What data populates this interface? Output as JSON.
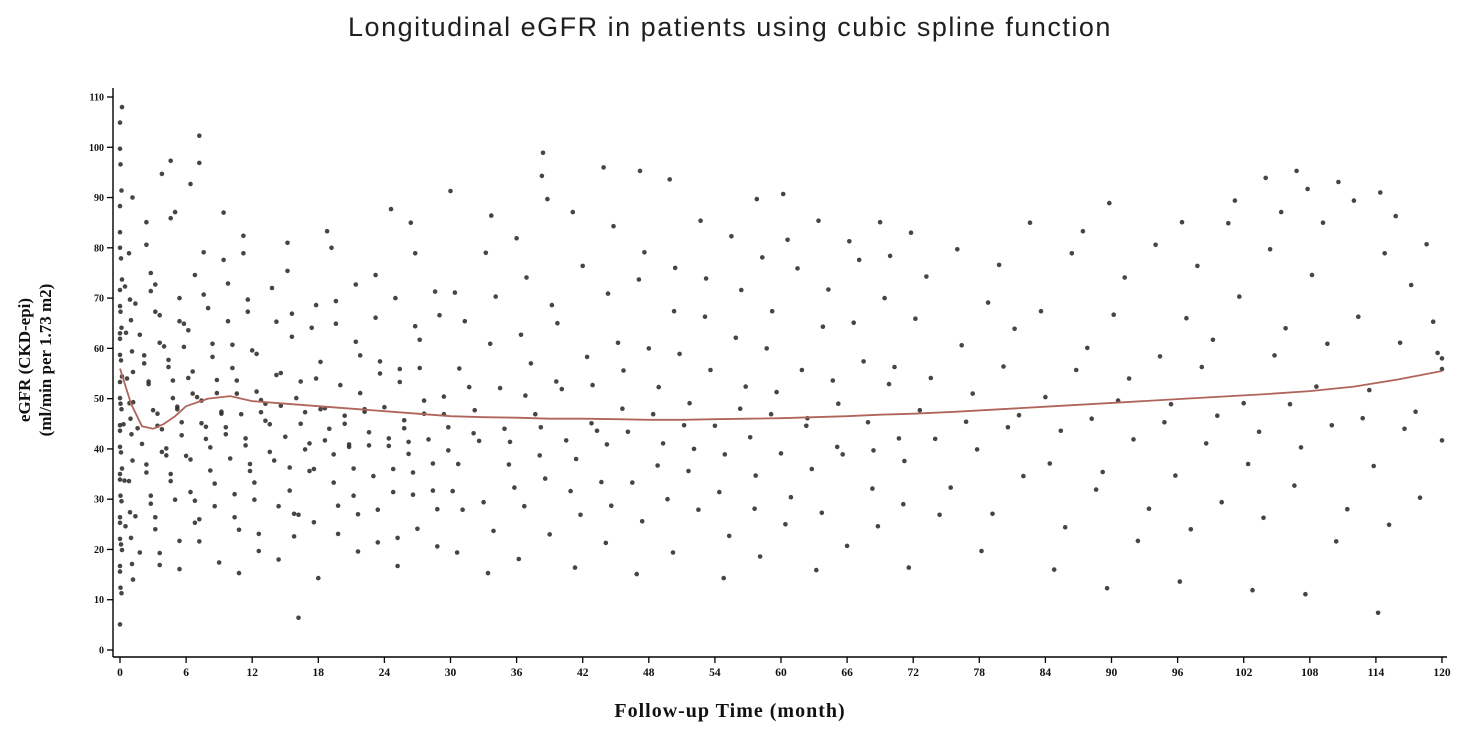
{
  "chart_data": {
    "type": "scatter",
    "title": "Longitudinal eGFR in patients using cubic spline function",
    "xlabel": "Follow-up  Time (month)",
    "ylabel": "eGFR (CKD-epi) (ml/min per 1.73 m2)",
    "ylabel_line1": "eGFR (CKD-epi)",
    "ylabel_line2": "(ml/min per 1.73 m2)",
    "xlim": [
      0,
      120
    ],
    "ylim": [
      0,
      110
    ],
    "xticks": [
      0,
      6,
      12,
      18,
      24,
      30,
      36,
      42,
      48,
      54,
      60,
      66,
      72,
      78,
      84,
      90,
      96,
      102,
      108,
      114,
      120
    ],
    "yticks": [
      0,
      10,
      20,
      30,
      40,
      50,
      60,
      70,
      80,
      90,
      100,
      110
    ],
    "grid": false,
    "legend": "none",
    "point_color": "#2e2a28",
    "line_color": "#b0655c",
    "axis_color": "#000000",
    "spline": [
      [
        0,
        56
      ],
      [
        1,
        49
      ],
      [
        2,
        44.5
      ],
      [
        3,
        44
      ],
      [
        4,
        45
      ],
      [
        5,
        46.5
      ],
      [
        6,
        48.5
      ],
      [
        8,
        50
      ],
      [
        10,
        50.5
      ],
      [
        12,
        49.5
      ],
      [
        15,
        49
      ],
      [
        18,
        48.5
      ],
      [
        21,
        48
      ],
      [
        24,
        47.5
      ],
      [
        27,
        47
      ],
      [
        30,
        46.5
      ],
      [
        33,
        46.3
      ],
      [
        36,
        46.2
      ],
      [
        39,
        46
      ],
      [
        42,
        46
      ],
      [
        45,
        45.9
      ],
      [
        48,
        45.8
      ],
      [
        51,
        45.8
      ],
      [
        54,
        45.9
      ],
      [
        57,
        46
      ],
      [
        60,
        46.1
      ],
      [
        63,
        46.3
      ],
      [
        66,
        46.5
      ],
      [
        69,
        46.8
      ],
      [
        72,
        47
      ],
      [
        76,
        47.4
      ],
      [
        80,
        47.9
      ],
      [
        84,
        48.4
      ],
      [
        88,
        48.9
      ],
      [
        92,
        49.4
      ],
      [
        96,
        49.9
      ],
      [
        100,
        50.4
      ],
      [
        104,
        50.9
      ],
      [
        108,
        51.5
      ],
      [
        112,
        52.4
      ],
      [
        116,
        53.8
      ],
      [
        120,
        55.5
      ]
    ],
    "points": [
      {
        "x": 0,
        "ys": [
          6,
          11,
          13,
          15,
          17,
          19,
          21,
          23,
          25,
          27,
          29,
          31,
          33,
          35,
          37,
          39,
          41,
          43,
          45,
          47,
          49,
          51,
          53,
          55,
          57,
          59,
          61,
          63,
          65,
          67,
          69,
          71,
          74,
          77,
          80,
          84,
          88,
          92,
          96,
          100,
          104,
          108
        ]
      },
      {
        "x": 0.5,
        "ys": [
          24,
          34,
          44,
          54,
          64,
          72
        ]
      },
      {
        "x": 1,
        "ys": [
          14,
          18,
          22,
          28,
          33,
          38,
          42,
          46,
          50,
          55,
          60,
          65,
          70,
          78,
          90
        ]
      },
      {
        "x": 2,
        "ys": [
          20,
          26,
          31,
          36,
          41,
          45,
          49,
          54,
          58,
          63,
          68,
          75,
          86
        ]
      },
      {
        "x": 3,
        "ys": [
          16,
          24,
          30,
          35,
          40,
          44,
          48,
          52,
          57,
          62,
          67,
          72,
          80,
          95
        ]
      },
      {
        "x": 4,
        "ys": [
          19,
          27,
          33,
          39,
          43,
          47,
          51,
          56,
          61,
          66,
          73,
          85
        ]
      },
      {
        "x": 5,
        "ys": [
          22,
          29,
          35,
          41,
          45,
          49,
          53,
          58,
          64,
          70,
          88,
          97
        ]
      },
      {
        "x": 6,
        "ys": [
          17,
          25,
          32,
          38,
          43,
          47,
          51,
          55,
          60,
          66,
          74,
          93
        ]
      },
      {
        "x": 7,
        "ys": [
          21,
          30,
          37,
          42,
          46,
          50,
          56,
          63,
          71,
          96
        ]
      },
      {
        "x": 8,
        "ys": [
          26,
          34,
          40,
          45,
          49,
          54,
          60,
          68,
          80,
          102
        ]
      },
      {
        "x": 9,
        "ys": [
          18,
          28,
          36,
          42,
          47,
          52,
          58,
          66,
          77
        ]
      },
      {
        "x": 10,
        "ys": [
          23,
          31,
          39,
          44,
          48,
          53,
          61,
          72,
          87
        ]
      },
      {
        "x": 11,
        "ys": [
          15,
          27,
          35,
          41,
          46,
          51,
          57,
          67,
          83
        ]
      },
      {
        "x": 12,
        "ys": [
          20,
          29,
          37,
          43,
          47,
          52,
          59,
          70,
          78
        ]
      },
      {
        "x": 13,
        "ys": [
          24,
          33,
          40,
          45,
          50,
          58,
          72
        ]
      },
      {
        "x": 14,
        "ys": [
          28,
          38,
          44,
          49,
          56,
          65
        ]
      },
      {
        "x": 15,
        "ys": [
          18,
          28,
          36,
          43,
          48,
          55,
          66,
          81
        ]
      },
      {
        "x": 16,
        "ys": [
          7,
          22,
          32,
          39,
          45,
          51,
          62,
          76
        ]
      },
      {
        "x": 17,
        "ys": [
          26,
          36,
          42,
          47,
          54,
          68
        ]
      },
      {
        "x": 18,
        "ys": [
          14,
          26,
          35,
          42,
          47,
          54,
          65,
          83
        ]
      },
      {
        "x": 19,
        "ys": [
          29,
          38,
          44,
          49,
          57,
          70
        ]
      },
      {
        "x": 20,
        "ys": [
          24,
          33,
          41,
          46,
          53,
          64,
          80
        ]
      },
      {
        "x": 21,
        "ys": [
          19,
          31,
          40,
          45,
          52,
          61
        ]
      },
      {
        "x": 22,
        "ys": [
          27,
          37,
          43,
          48,
          58,
          73
        ]
      },
      {
        "x": 23,
        "ys": [
          22,
          34,
          41,
          47,
          55,
          67
        ]
      },
      {
        "x": 24,
        "ys": [
          27,
          36,
          43,
          48,
          58,
          74,
          88
        ]
      },
      {
        "x": 25,
        "ys": [
          22,
          32,
          40,
          46,
          55,
          70
        ]
      },
      {
        "x": 26,
        "ys": [
          17,
          30,
          39,
          45,
          53,
          65
        ]
      },
      {
        "x": 27,
        "ys": [
          25,
          35,
          42,
          49,
          62,
          78,
          85
        ]
      },
      {
        "x": 28,
        "ys": [
          20,
          32,
          41,
          47,
          57,
          71
        ]
      },
      {
        "x": 29,
        "ys": [
          28,
          38,
          44,
          51,
          66
        ]
      },
      {
        "x": 30,
        "ys": [
          20,
          31,
          40,
          46,
          56,
          72,
          91
        ]
      },
      {
        "x": 31.5,
        "ys": [
          27,
          37,
          44,
          52,
          66
        ]
      },
      {
        "x": 33,
        "ys": [
          15,
          30,
          41,
          48,
          60,
          79
        ]
      },
      {
        "x": 34.5,
        "ys": [
          24,
          36,
          44,
          53,
          70,
          87
        ]
      },
      {
        "x": 36,
        "ys": [
          19,
          32,
          42,
          50,
          63,
          81
        ]
      },
      {
        "x": 37.5,
        "ys": [
          28,
          39,
          46,
          57,
          75,
          94
        ]
      },
      {
        "x": 39,
        "ys": [
          23,
          35,
          44,
          54,
          68,
          90,
          98
        ]
      },
      {
        "x": 40.5,
        "ys": [
          17,
          31,
          42,
          51,
          65,
          88
        ]
      },
      {
        "x": 42,
        "ys": [
          26,
          38,
          46,
          58,
          77
        ]
      },
      {
        "x": 43.5,
        "ys": [
          21,
          34,
          43,
          53,
          70,
          96
        ]
      },
      {
        "x": 45,
        "ys": [
          29,
          40,
          48,
          62,
          84
        ]
      },
      {
        "x": 46.5,
        "ys": [
          16,
          33,
          44,
          55,
          74
        ]
      },
      {
        "x": 48,
        "ys": [
          25,
          37,
          46,
          60,
          80,
          95
        ]
      },
      {
        "x": 49.5,
        "ys": [
          30,
          42,
          52,
          68,
          93
        ]
      },
      {
        "x": 51,
        "ys": [
          20,
          35,
          45,
          58,
          76
        ]
      },
      {
        "x": 52.5,
        "ys": [
          27,
          40,
          50,
          66,
          86
        ]
      },
      {
        "x": 54,
        "ys": [
          14,
          32,
          44,
          56,
          73
        ]
      },
      {
        "x": 55.5,
        "ys": [
          23,
          38,
          48,
          63,
          82
        ]
      },
      {
        "x": 57,
        "ys": [
          29,
          42,
          53,
          71,
          90
        ]
      },
      {
        "x": 58.5,
        "ys": [
          18,
          35,
          46,
          60,
          79
        ]
      },
      {
        "x": 60,
        "ys": [
          25,
          40,
          51,
          68,
          81,
          91
        ]
      },
      {
        "x": 61.5,
        "ys": [
          31,
          44,
          56,
          75
        ]
      },
      {
        "x": 63,
        "ys": [
          15,
          36,
          47,
          64,
          86
        ]
      },
      {
        "x": 64.5,
        "ys": [
          27,
          41,
          53,
          72
        ]
      },
      {
        "x": 66,
        "ys": [
          21,
          38,
          49,
          66,
          81
        ]
      },
      {
        "x": 67.5,
        "ys": [
          33,
          45,
          58,
          77
        ]
      },
      {
        "x": 69,
        "ys": [
          24,
          40,
          52,
          70,
          86
        ]
      },
      {
        "x": 70.5,
        "ys": [
          29,
          43,
          56,
          79
        ]
      },
      {
        "x": 72,
        "ys": [
          17,
          37,
          48,
          65,
          83
        ]
      },
      {
        "x": 74,
        "ys": [
          26,
          42,
          55,
          74
        ]
      },
      {
        "x": 76,
        "ys": [
          32,
          46,
          60,
          80
        ]
      },
      {
        "x": 78,
        "ys": [
          20,
          39,
          51,
          70
        ]
      },
      {
        "x": 80,
        "ys": [
          28,
          44,
          57,
          76
        ]
      },
      {
        "x": 82,
        "ys": [
          34,
          47,
          63,
          85
        ]
      },
      {
        "x": 84,
        "ys": [
          16,
          38,
          50,
          68
        ]
      },
      {
        "x": 86,
        "ys": [
          25,
          43,
          56,
          78
        ]
      },
      {
        "x": 88,
        "ys": [
          31,
          46,
          61,
          83
        ]
      },
      {
        "x": 90,
        "ys": [
          12,
          36,
          49,
          67,
          88
        ]
      },
      {
        "x": 92,
        "ys": [
          22,
          41,
          54,
          75
        ]
      },
      {
        "x": 94,
        "ys": [
          29,
          45,
          59,
          80
        ]
      },
      {
        "x": 96,
        "ys": [
          13,
          35,
          48,
          66,
          86
        ]
      },
      {
        "x": 98,
        "ys": [
          24,
          42,
          56,
          77
        ]
      },
      {
        "x": 100,
        "ys": [
          30,
          46,
          62,
          84
        ]
      },
      {
        "x": 102,
        "ys": [
          11,
          37,
          50,
          70,
          90
        ]
      },
      {
        "x": 104,
        "ys": [
          26,
          44,
          58,
          80,
          93
        ]
      },
      {
        "x": 106,
        "ys": [
          33,
          48,
          64,
          88,
          95
        ]
      },
      {
        "x": 108,
        "ys": [
          12,
          40,
          53,
          74,
          92
        ]
      },
      {
        "x": 110,
        "ys": [
          21,
          45,
          60,
          85,
          94
        ]
      },
      {
        "x": 112,
        "ys": [
          28,
          47,
          66,
          90
        ]
      },
      {
        "x": 114,
        "ys": [
          8,
          36,
          52,
          78,
          91
        ]
      },
      {
        "x": 116,
        "ys": [
          24,
          44,
          62,
          86
        ]
      },
      {
        "x": 118,
        "ys": [
          30,
          48,
          72,
          81
        ]
      },
      {
        "x": 120,
        "ys": [
          42,
          55,
          58,
          60,
          65
        ]
      }
    ]
  }
}
